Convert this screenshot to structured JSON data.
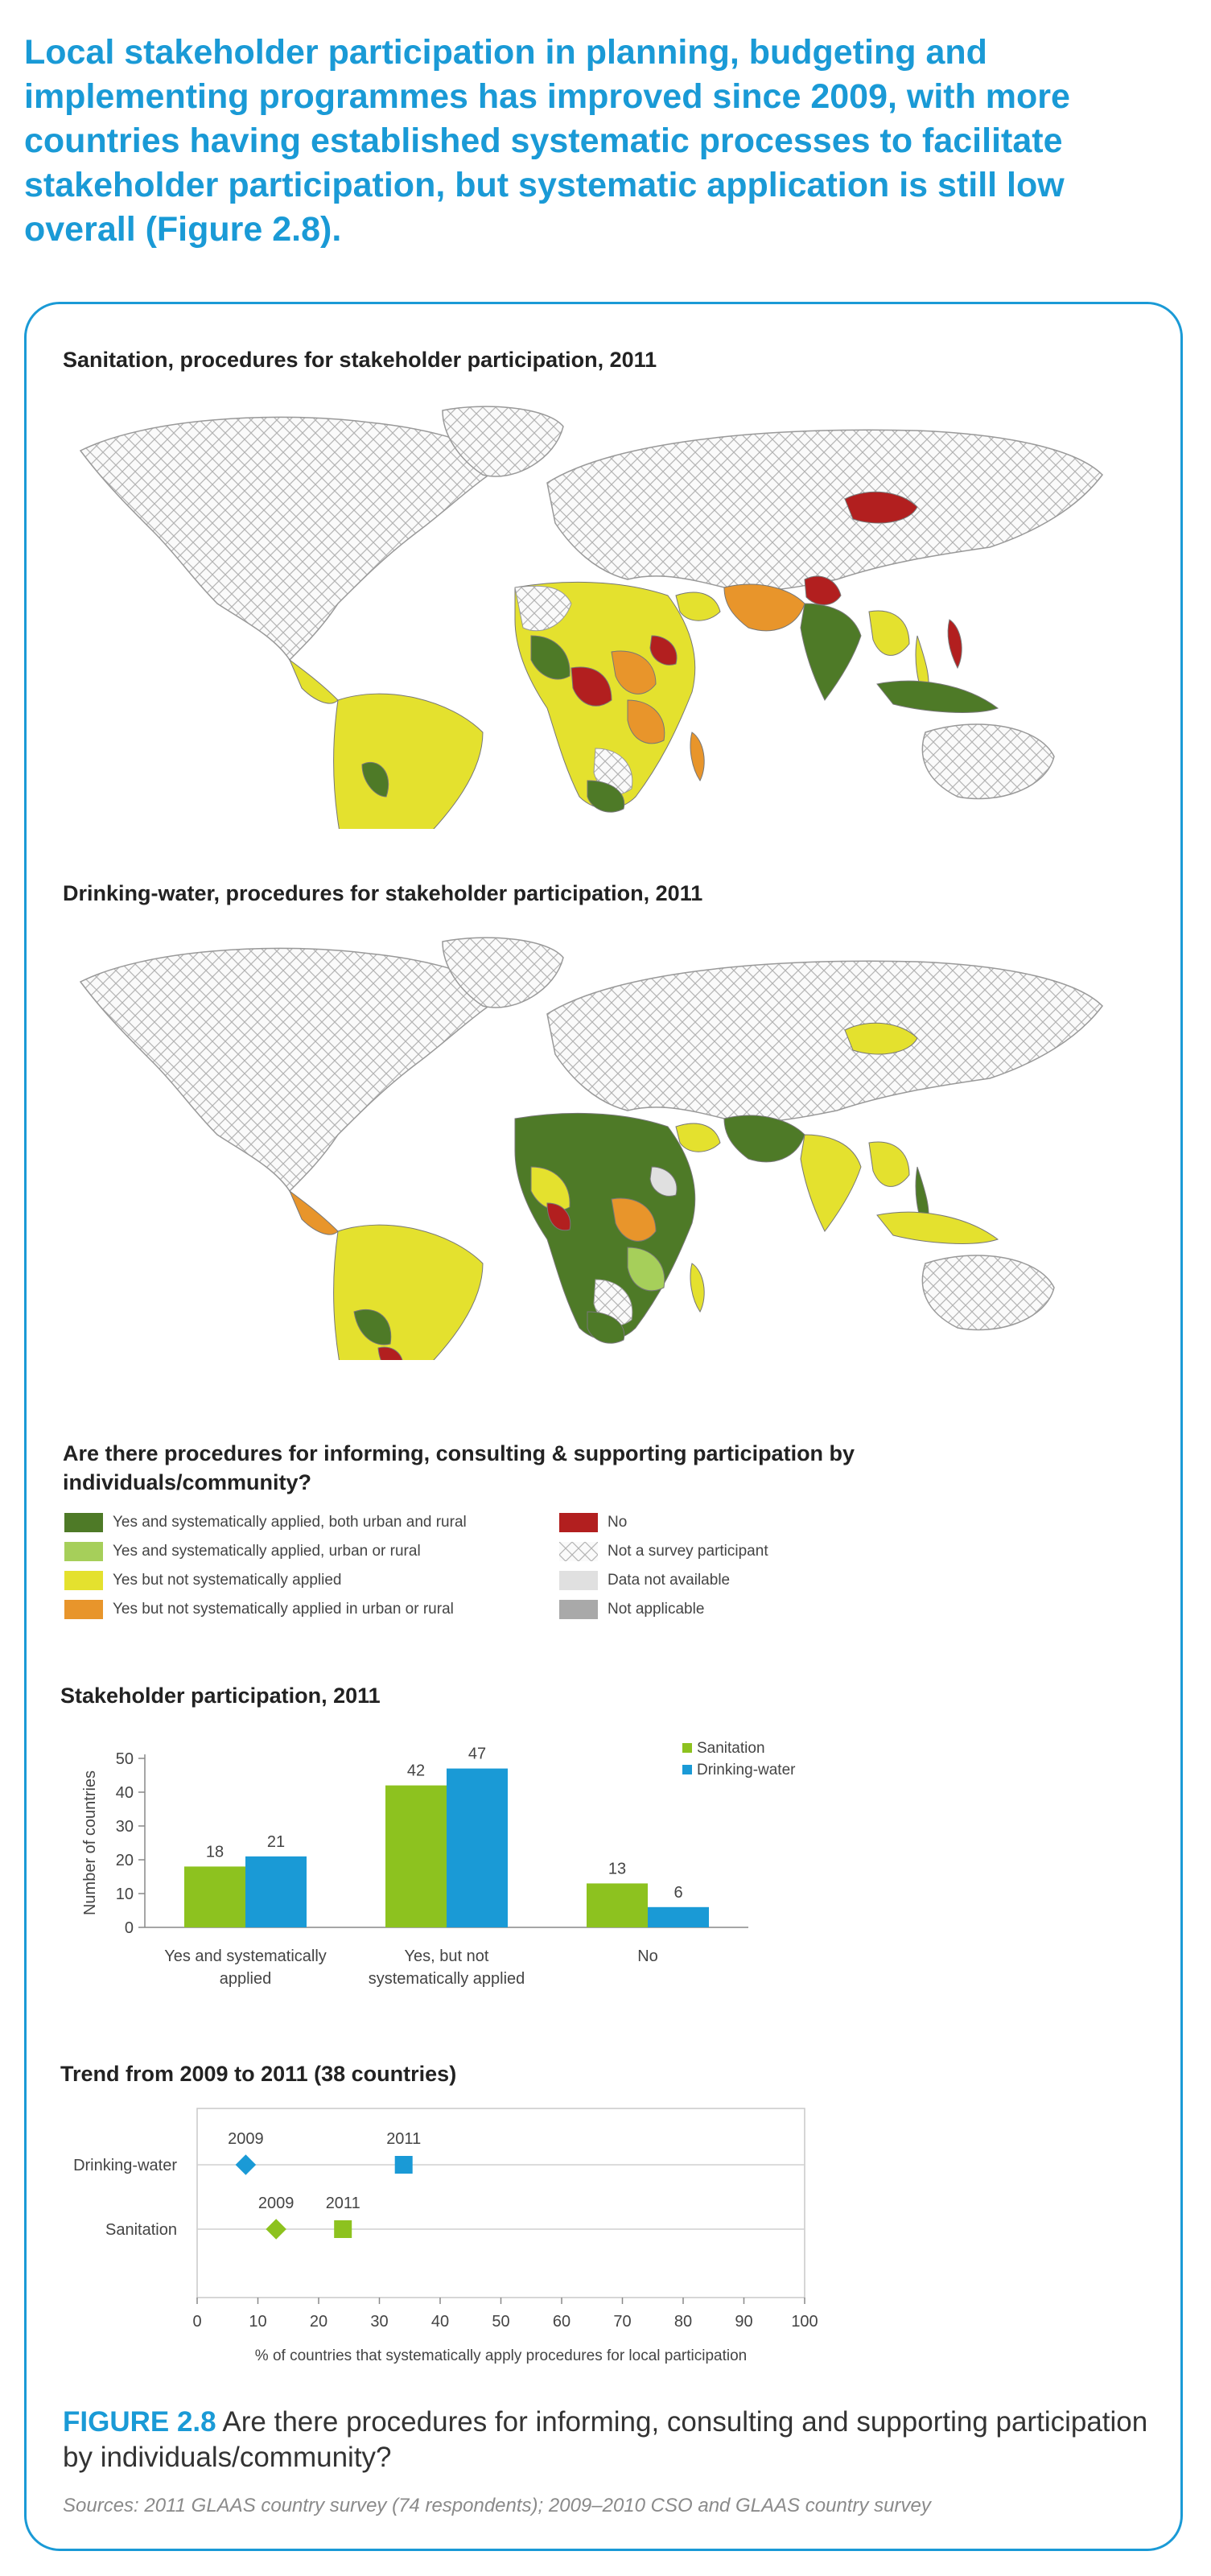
{
  "lead_text": "Local stakeholder participation in planning, budgeting and implementing programmes has improved since 2009, with more countries having established systematic processes to facilitate stakeholder participation, but systematic application is still low overall (Figure 2.8).",
  "maps": [
    {
      "title": "Sanitation, procedures for stakeholder participation, 2011"
    },
    {
      "title": "Drinking-water, procedures for stakeholder participation, 2011"
    }
  ],
  "legend": {
    "title": "Are there procedures for informing, consulting & supporting participation by individuals/community?",
    "items": [
      {
        "label": "Yes and systematically applied, both urban and rural",
        "color": "#4e7a27"
      },
      {
        "label": "Yes and systematically applied, urban or rural",
        "color": "#a6cf5a"
      },
      {
        "label": "Yes but not systematically applied",
        "color": "#e4e12e"
      },
      {
        "label": "Yes but not systematically applied in urban or rural",
        "color": "#e8952b"
      },
      {
        "label": "No",
        "color": "#b21f1f"
      },
      {
        "label": "Not a survey participant",
        "color": "hatch"
      },
      {
        "label": "Data not available",
        "color": "#e0e0e0"
      },
      {
        "label": "Not applicable",
        "color": "#a9a9a9"
      }
    ]
  },
  "chart_data": [
    {
      "type": "bar",
      "title": "Stakeholder participation, 2011",
      "categories": [
        "Yes and systematically applied",
        "Yes, but not systematically applied",
        "No"
      ],
      "series": [
        {
          "name": "Sanitation",
          "values": [
            18,
            42,
            13
          ],
          "color": "#8dc21f"
        },
        {
          "name": "Drinking-water",
          "values": [
            21,
            47,
            6
          ],
          "color": "#1a9ad6"
        }
      ],
      "ylabel": "Number of countries",
      "ylim": [
        0,
        50
      ],
      "yticks": [
        "0",
        "10",
        "20",
        "30",
        "40",
        "50"
      ],
      "legend_position": "top-right"
    },
    {
      "type": "scatter",
      "title": "Trend from 2009 to 2011 (38 countries)",
      "categories": [
        "Drinking-water",
        "Sanitation"
      ],
      "series": [
        {
          "name": "Drinking-water",
          "points": [
            {
              "label": "2009",
              "x": 8
            },
            {
              "label": "2011",
              "x": 34
            }
          ],
          "color": "#1a9ad6"
        },
        {
          "name": "Sanitation",
          "points": [
            {
              "label": "2009",
              "x": 13
            },
            {
              "label": "2011",
              "x": 24
            }
          ],
          "color": "#8dc21f"
        }
      ],
      "xlabel": "% of countries that systematically apply procedures for local participation",
      "xlim": [
        0,
        100
      ],
      "xticks": [
        "0",
        "10",
        "20",
        "30",
        "40",
        "50",
        "60",
        "70",
        "80",
        "90",
        "100"
      ]
    }
  ],
  "caption": {
    "figure_label": "FIGURE 2.8",
    "text": "Are there procedures for informing, consulting and supporting participation by individuals/community?"
  },
  "sources": "Sources: 2011 GLAAS country survey (74 respondents); 2009–2010 CSO and GLAAS country survey"
}
